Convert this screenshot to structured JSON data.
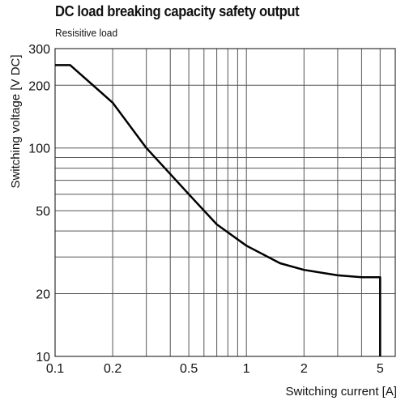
{
  "chart_data": {
    "type": "line",
    "title": "DC load breaking capacity safety output",
    "subtitle": "Resisitive load",
    "xlabel": "Switching current [A]",
    "ylabel": "Switching voltage [V DC]",
    "xscale": "log",
    "yscale": "log",
    "xlim": [
      0.1,
      6
    ],
    "ylim": [
      10,
      300
    ],
    "grid": true,
    "x_ticks": [
      {
        "value": 0.1,
        "label": "0.1"
      },
      {
        "value": 0.2,
        "label": "0.2"
      },
      {
        "value": 0.5,
        "label": "0.5"
      },
      {
        "value": 1,
        "label": "1"
      },
      {
        "value": 2,
        "label": "2"
      },
      {
        "value": 5,
        "label": "5"
      }
    ],
    "y_ticks": [
      {
        "value": 10,
        "label": "10"
      },
      {
        "value": 20,
        "label": "20"
      },
      {
        "value": 50,
        "label": "50"
      },
      {
        "value": 100,
        "label": "100"
      },
      {
        "value": 200,
        "label": "200"
      },
      {
        "value": 300,
        "label": "300"
      }
    ],
    "x_gridlines": [
      0.1,
      0.2,
      0.3,
      0.4,
      0.5,
      0.6,
      0.7,
      0.8,
      0.9,
      1,
      2,
      3,
      4,
      5
    ],
    "y_gridlines": [
      10,
      20,
      30,
      40,
      50,
      60,
      70,
      80,
      90,
      100,
      200,
      300
    ],
    "series": [
      {
        "x": [
          0.1,
          0.12,
          0.2,
          0.3,
          0.5,
          0.7,
          1.0,
          1.5,
          2.0,
          3.0,
          4.0,
          5.0,
          5.0
        ],
        "y": [
          250,
          250,
          165,
          100,
          60,
          43,
          34,
          28,
          26,
          24.5,
          24,
          24,
          10
        ]
      }
    ]
  }
}
